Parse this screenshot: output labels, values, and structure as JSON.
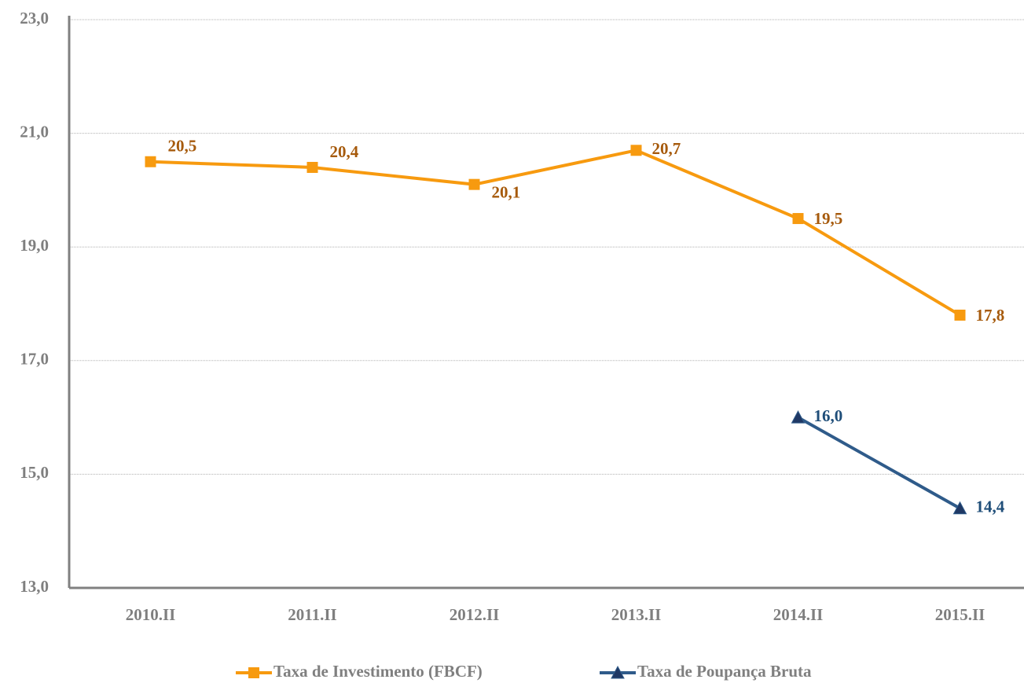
{
  "chart_data": {
    "type": "line",
    "categories": [
      "2010.II",
      "2011.II",
      "2012.II",
      "2013.II",
      "2014.II",
      "2015.II"
    ],
    "series": [
      {
        "name": "Taxa de Investimento (FBCF)",
        "color": "#f79a0f",
        "label_color": "#a65a0c",
        "values": [
          20.5,
          20.4,
          20.1,
          20.7,
          19.5,
          17.8
        ],
        "value_labels": [
          "20,5",
          "20,4",
          "20,1",
          "20,7",
          "19,5",
          "17,8"
        ],
        "marker": "square"
      },
      {
        "name": "Taxa de Poupança Bruta",
        "color": "#2f5b8a",
        "label_color": "#1f4e79",
        "values": [
          null,
          null,
          null,
          null,
          16.0,
          14.4
        ],
        "value_labels": [
          null,
          null,
          null,
          null,
          "16,0",
          "14,4"
        ],
        "marker": "triangle"
      }
    ],
    "ylim": [
      13,
      23
    ],
    "yticks": [
      {
        "value": 13,
        "label": "13,0"
      },
      {
        "value": 15,
        "label": "15,0"
      },
      {
        "value": 17,
        "label": "17,0"
      },
      {
        "value": 19,
        "label": "19,0"
      },
      {
        "value": 21,
        "label": "21,0"
      },
      {
        "value": 23,
        "label": "23,0"
      }
    ],
    "grid": true,
    "legend": "bottom"
  }
}
